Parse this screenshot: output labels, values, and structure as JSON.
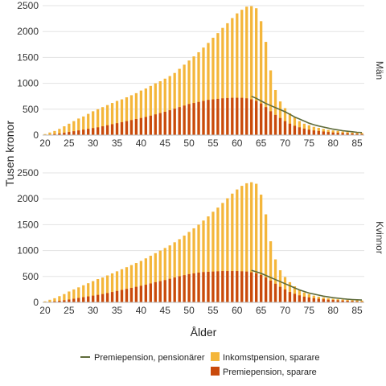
{
  "chart_data": {
    "type": "bar",
    "ylabel": "Tusen kronor",
    "xlabel": "Ålder",
    "xlim": [
      19.5,
      86.5
    ],
    "ylim": [
      0,
      2500
    ],
    "x_ticks": [
      20,
      25,
      30,
      35,
      40,
      45,
      50,
      55,
      60,
      65,
      70,
      75,
      80,
      85
    ],
    "y_ticks": [
      0,
      500,
      1000,
      1500,
      2000,
      2500
    ],
    "legend_position": "bottom",
    "grid": true,
    "colors": {
      "inkomstpension": "#f4b63b",
      "premiepension": "#c94a0c",
      "line": "#5e6b3a"
    },
    "legend": [
      {
        "label": "Premiepension, pensionärer",
        "kind": "line"
      },
      {
        "label": "Inkomstpension, sparare",
        "kind": "bar-light"
      },
      {
        "label": "Premiepension, sparare",
        "kind": "bar-dark"
      }
    ],
    "panels": [
      {
        "facet_label": "Män",
        "x": [
          20,
          21,
          22,
          23,
          24,
          25,
          26,
          27,
          28,
          29,
          30,
          31,
          32,
          33,
          34,
          35,
          36,
          37,
          38,
          39,
          40,
          41,
          42,
          43,
          44,
          45,
          46,
          47,
          48,
          49,
          50,
          51,
          52,
          53,
          54,
          55,
          56,
          57,
          58,
          59,
          60,
          61,
          62,
          63,
          64,
          65,
          66,
          67,
          68,
          69,
          70,
          71,
          72,
          73,
          74,
          75,
          76,
          77,
          78,
          79,
          80,
          81,
          82,
          83,
          84,
          85,
          86
        ],
        "series": [
          {
            "name": "Inkomstpension, sparare",
            "values": [
              20,
              50,
              80,
              120,
              170,
              220,
              270,
              320,
              360,
              410,
              460,
              500,
              540,
              580,
              620,
              660,
              690,
              730,
              770,
              810,
              860,
              900,
              950,
              1000,
              1040,
              1090,
              1140,
              1200,
              1280,
              1360,
              1440,
              1520,
              1600,
              1690,
              1780,
              1880,
              1970,
              2070,
              2160,
              2260,
              2350,
              2420,
              2480,
              2490,
              2450,
              2200,
              1800,
              1250,
              870,
              650,
              520,
              420,
              340,
              270,
              220,
              190,
              160,
              140,
              120,
              100,
              90,
              80,
              70,
              60,
              50,
              45,
              40
            ]
          },
          {
            "name": "Premiepension, sparare",
            "values": [
              5,
              10,
              20,
              30,
              45,
              60,
              75,
              90,
              105,
              120,
              135,
              150,
              170,
              190,
              210,
              230,
              250,
              270,
              290,
              310,
              330,
              350,
              375,
              400,
              425,
              450,
              480,
              510,
              540,
              570,
              600,
              620,
              640,
              660,
              680,
              690,
              700,
              710,
              715,
              720,
              720,
              720,
              710,
              690,
              660,
              610,
              540,
              460,
              390,
              330,
              270,
              220,
              180,
              150,
              125,
              105,
              90,
              80,
              70,
              60,
              50,
              45,
              40,
              35,
              30,
              25,
              20
            ]
          },
          {
            "name": "Premiepension, pensionärer",
            "values": [
              null,
              null,
              null,
              null,
              null,
              null,
              null,
              null,
              null,
              null,
              null,
              null,
              null,
              null,
              null,
              null,
              null,
              null,
              null,
              null,
              null,
              null,
              null,
              null,
              null,
              null,
              null,
              null,
              null,
              null,
              null,
              null,
              null,
              null,
              null,
              null,
              null,
              null,
              null,
              null,
              null,
              null,
              null,
              750,
              710,
              660,
              610,
              570,
              530,
              490,
              450,
              400,
              350,
              310,
              270,
              230,
              200,
              175,
              155,
              135,
              115,
              100,
              85,
              75,
              65,
              55,
              50
            ]
          }
        ]
      },
      {
        "facet_label": "Kvinnor",
        "x": [
          20,
          21,
          22,
          23,
          24,
          25,
          26,
          27,
          28,
          29,
          30,
          31,
          32,
          33,
          34,
          35,
          36,
          37,
          38,
          39,
          40,
          41,
          42,
          43,
          44,
          45,
          46,
          47,
          48,
          49,
          50,
          51,
          52,
          53,
          54,
          55,
          56,
          57,
          58,
          59,
          60,
          61,
          62,
          63,
          64,
          65,
          66,
          67,
          68,
          69,
          70,
          71,
          72,
          73,
          74,
          75,
          76,
          77,
          78,
          79,
          80,
          81,
          82,
          83,
          84,
          85,
          86
        ],
        "series": [
          {
            "name": "Inkomstpension, sparare",
            "values": [
              20,
              50,
              80,
              120,
              160,
              210,
              250,
              290,
              330,
              370,
              410,
              450,
              480,
              520,
              560,
              600,
              640,
              680,
              720,
              760,
              800,
              850,
              900,
              950,
              1000,
              1050,
              1100,
              1160,
              1220,
              1290,
              1360,
              1430,
              1500,
              1580,
              1660,
              1750,
              1830,
              1920,
              2010,
              2100,
              2180,
              2250,
              2300,
              2320,
              2290,
              2080,
              1700,
              1180,
              830,
              620,
              490,
              390,
              310,
              240,
              190,
              160,
              130,
              110,
              95,
              80,
              70,
              60,
              55,
              50,
              45,
              40,
              35
            ]
          },
          {
            "name": "Premiepension, sparare",
            "values": [
              5,
              10,
              20,
              30,
              40,
              55,
              70,
              85,
              100,
              115,
              130,
              145,
              160,
              180,
              200,
              220,
              240,
              260,
              280,
              300,
              320,
              340,
              365,
              390,
              410,
              430,
              455,
              480,
              505,
              525,
              545,
              560,
              575,
              585,
              590,
              595,
              600,
              605,
              605,
              605,
              605,
              600,
              595,
              580,
              560,
              530,
              480,
              420,
              360,
              300,
              250,
              200,
              165,
              135,
              110,
              95,
              80,
              70,
              60,
              50,
              45,
              40,
              35,
              30,
              25,
              20,
              15
            ]
          },
          {
            "name": "Premiepension, pensionärer",
            "values": [
              null,
              null,
              null,
              null,
              null,
              null,
              null,
              null,
              null,
              null,
              null,
              null,
              null,
              null,
              null,
              null,
              null,
              null,
              null,
              null,
              null,
              null,
              null,
              null,
              null,
              null,
              null,
              null,
              null,
              null,
              null,
              null,
              null,
              null,
              null,
              null,
              null,
              null,
              null,
              null,
              null,
              null,
              null,
              620,
              590,
              560,
              520,
              480,
              440,
              400,
              360,
              320,
              280,
              240,
              210,
              180,
              160,
              140,
              120,
              105,
              90,
              80,
              70,
              60,
              55,
              50,
              45
            ]
          }
        ]
      }
    ]
  }
}
